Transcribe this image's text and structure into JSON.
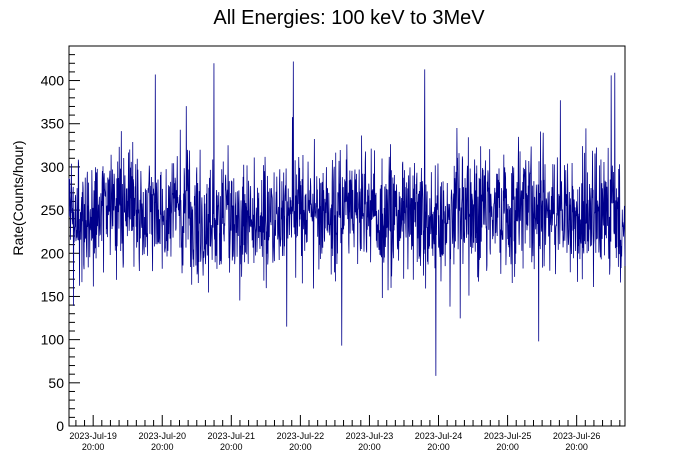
{
  "chart_data": {
    "type": "line",
    "title": "All Energies:  100 keV to 3MeV",
    "xlabel": "",
    "ylabel": "Rate(Counts/hour)",
    "ylim": [
      0,
      440
    ],
    "xlim_days_from_label_start": [
      -0.35,
      7.7
    ],
    "yticks": [
      0,
      50,
      100,
      150,
      200,
      250,
      300,
      350,
      400
    ],
    "xticks": [
      {
        "date": "2023-Jul-19",
        "time": "20:00"
      },
      {
        "date": "2023-Jul-20",
        "time": "20:00"
      },
      {
        "date": "2023-Jul-21",
        "time": "20:00"
      },
      {
        "date": "2023-Jul-22",
        "time": "20:00"
      },
      {
        "date": "2023-Jul-23",
        "time": "20:00"
      },
      {
        "date": "2023-Jul-24",
        "time": "20:00"
      },
      {
        "date": "2023-Jul-25",
        "time": "20:00"
      },
      {
        "date": "2023-Jul-26",
        "time": "20:00"
      }
    ],
    "series": [
      {
        "name": "",
        "color": "#00008b",
        "sampling": "hourly-scale noisy rate around ~245 counts/hour",
        "mean": 245,
        "typical_range": [
          160,
          360
        ],
        "notable_points": [
          {
            "day_offset": 0.9,
            "value": 407
          },
          {
            "day_offset": 1.75,
            "value": 420
          },
          {
            "day_offset": 2.9,
            "value": 422
          },
          {
            "day_offset": 2.8,
            "value": 115
          },
          {
            "day_offset": 3.6,
            "value": 93
          },
          {
            "day_offset": 6.45,
            "value": 98
          },
          {
            "day_offset": 7.5,
            "value": 406
          },
          {
            "day_offset": 7.55,
            "value": 409
          },
          {
            "day_offset": 4.96,
            "value": 58
          },
          {
            "day_offset": 4.8,
            "value": 413
          }
        ]
      }
    ],
    "grid": false,
    "legend": "none"
  }
}
